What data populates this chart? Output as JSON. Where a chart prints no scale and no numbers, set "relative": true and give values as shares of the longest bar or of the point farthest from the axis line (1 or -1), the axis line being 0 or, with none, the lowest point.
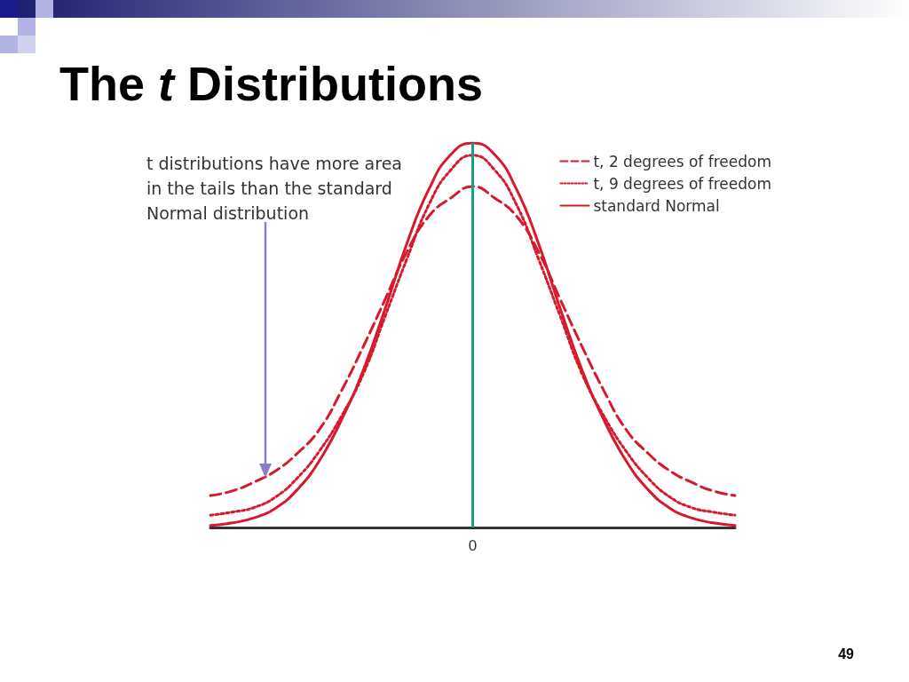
{
  "chart_data": {
    "type": "line",
    "title": "The t Distributions",
    "relative": true,
    "categories": [
      null,
      null,
      null,
      null,
      null,
      null,
      null,
      null,
      null,
      null,
      null,
      null,
      null,
      null,
      null,
      null,
      null,
      null,
      null,
      null,
      null,
      null,
      null,
      null,
      null
    ],
    "series": [
      {
        "name": "t, 2 degrees of freedom",
        "color": "#d7192d",
        "line_style": "dashed",
        "values": [
          0.083,
          0.095,
          0.118,
          0.148,
          0.194,
          0.256,
          0.356,
          0.471,
          0.594,
          0.718,
          0.81,
          0.857,
          0.887,
          0.857,
          0.81,
          0.718,
          0.594,
          0.471,
          0.356,
          0.256,
          0.194,
          0.148,
          0.118,
          0.095,
          0.083
        ]
      },
      {
        "name": "t, 9 degrees of freedom",
        "color": "#d7192d",
        "line_style": "dotted",
        "values": [
          0.032,
          0.04,
          0.052,
          0.08,
          0.13,
          0.2,
          0.29,
          0.4,
          0.55,
          0.7,
          0.84,
          0.93,
          0.968,
          0.93,
          0.84,
          0.7,
          0.55,
          0.4,
          0.29,
          0.2,
          0.13,
          0.08,
          0.052,
          0.04,
          0.032
        ]
      },
      {
        "name": "standard Normal",
        "color": "#d7192d",
        "line_style": "solid",
        "values": [
          0.005,
          0.012,
          0.025,
          0.051,
          0.1,
          0.175,
          0.28,
          0.41,
          0.57,
          0.74,
          0.88,
          0.97,
          1,
          0.97,
          0.88,
          0.74,
          0.57,
          0.41,
          0.28,
          0.175,
          0.1,
          0.051,
          0.025,
          0.012,
          0.005
        ]
      }
    ],
    "ref_lines": [
      {
        "axis": "x",
        "label": "0",
        "color": "#16a085"
      }
    ],
    "annotations": [
      "t distributions have more area in the tails than the standard Normal distribution",
      "49"
    ],
    "legend": "top right",
    "marker": "none",
    "grid": false
  }
}
